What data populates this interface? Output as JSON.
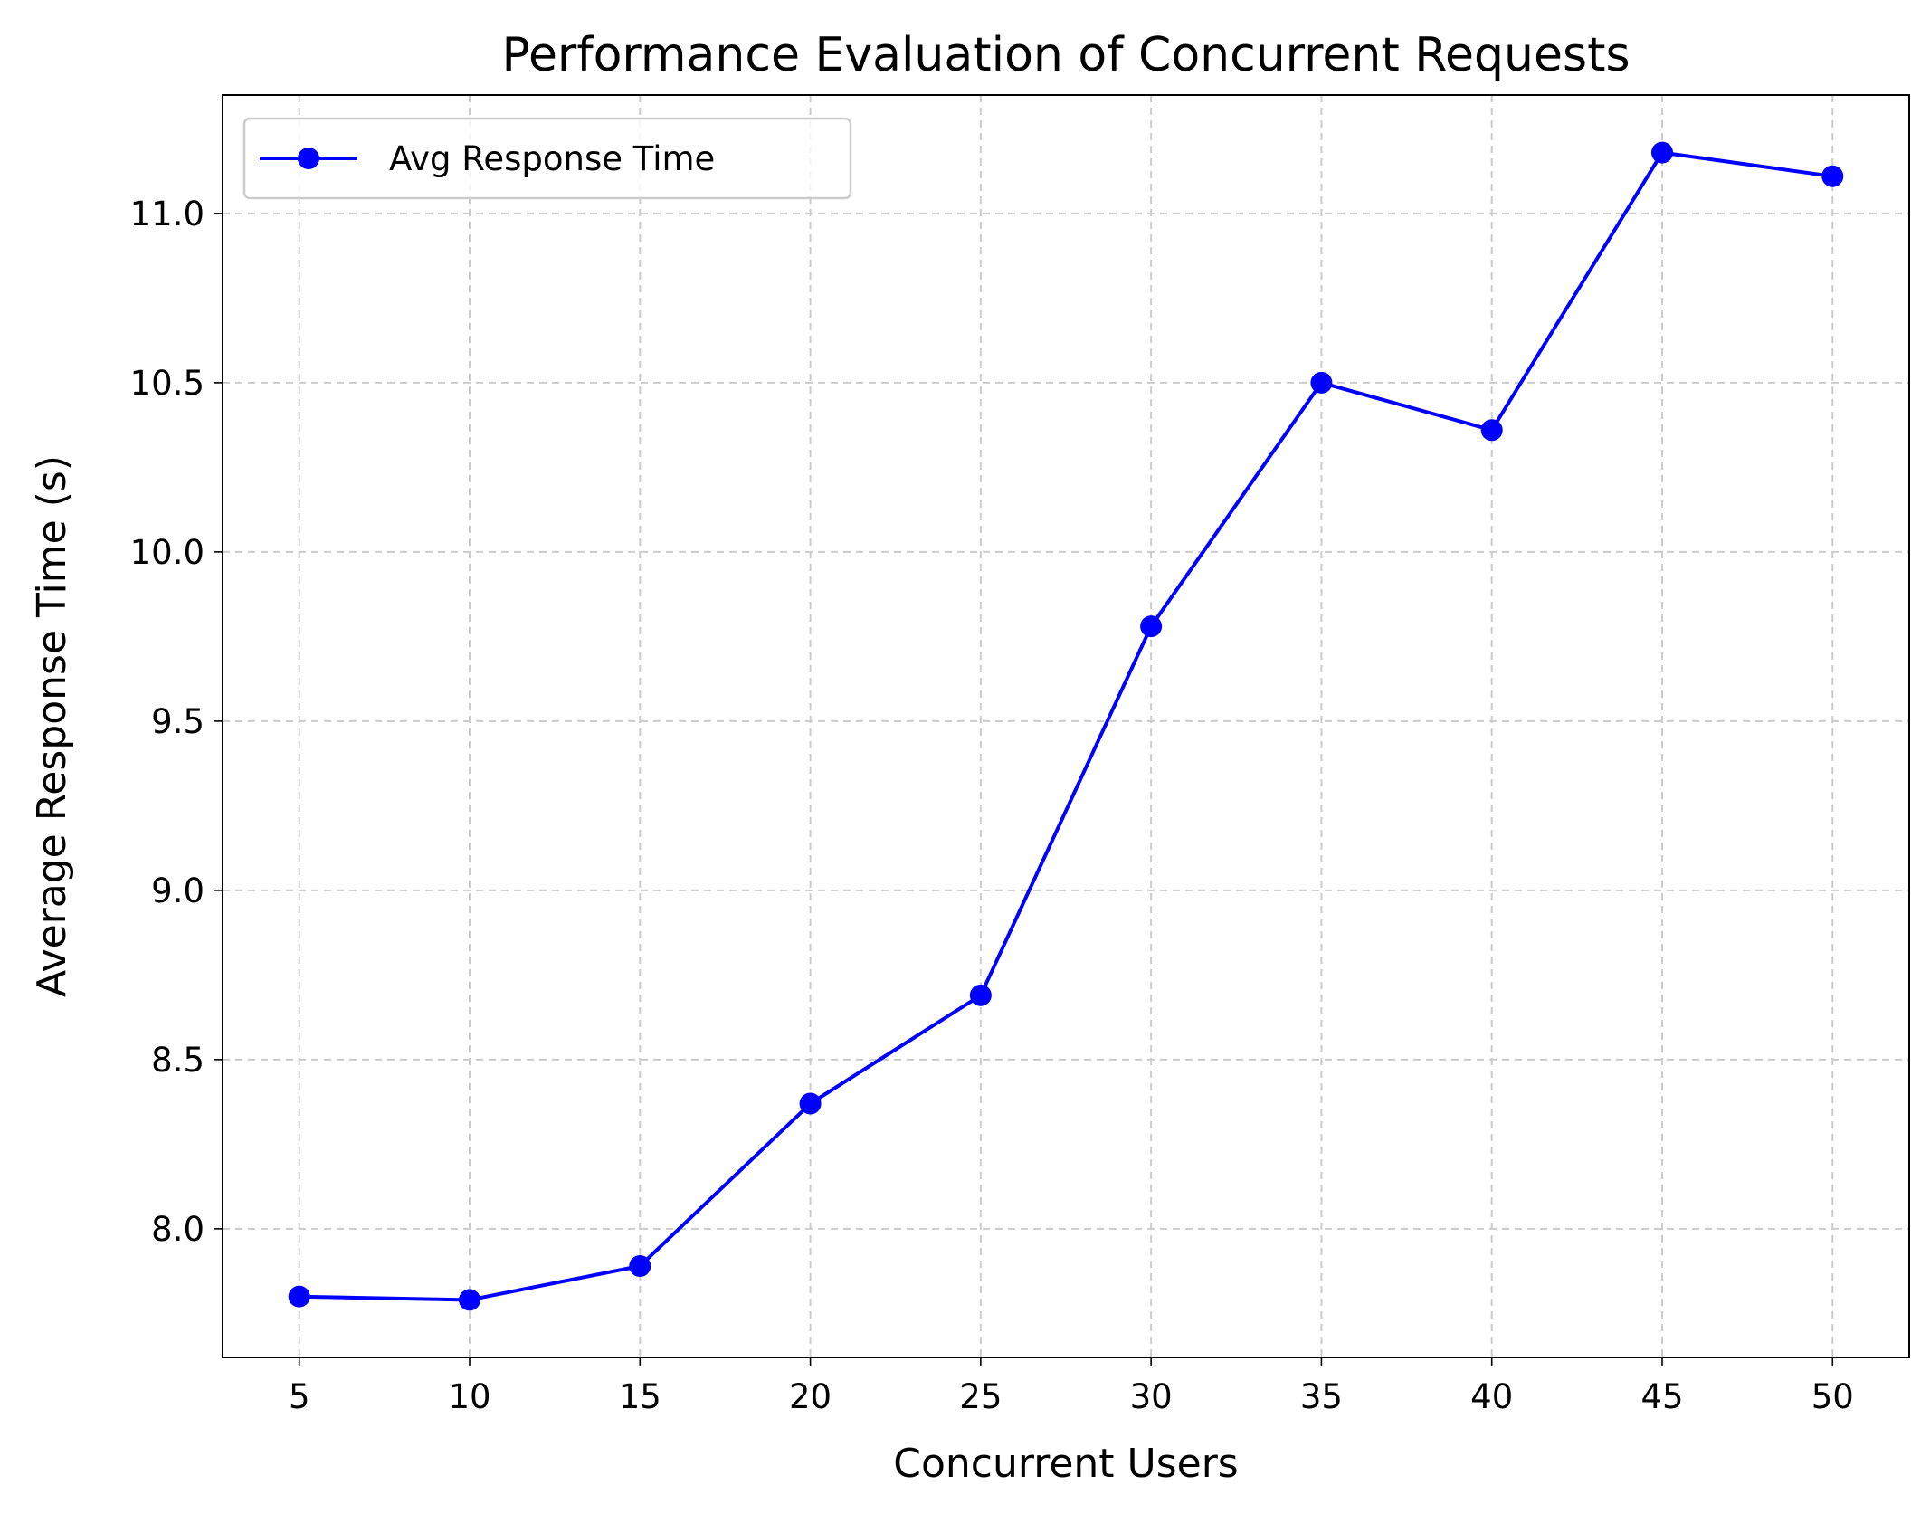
{
  "chart_data": {
    "type": "line",
    "title": "Performance Evaluation of Concurrent Requests",
    "xlabel": "Concurrent Users",
    "ylabel": "Average Response Time (s)",
    "x": [
      5,
      10,
      15,
      20,
      25,
      30,
      35,
      40,
      45,
      50
    ],
    "series": [
      {
        "name": "Avg Response Time",
        "color": "#0000ff",
        "marker": "circle",
        "values": [
          7.8,
          7.79,
          7.89,
          8.37,
          8.69,
          9.78,
          10.5,
          10.36,
          11.18,
          11.11
        ]
      }
    ],
    "xlim": [
      2.75,
      52.25
    ],
    "ylim": [
      7.62,
      11.35
    ],
    "xticks": [
      5,
      10,
      15,
      20,
      25,
      30,
      35,
      40,
      45,
      50
    ],
    "xtick_labels": [
      "5",
      "10",
      "15",
      "20",
      "25",
      "30",
      "35",
      "40",
      "45",
      "50"
    ],
    "yticks": [
      8.0,
      8.5,
      9.0,
      9.5,
      10.0,
      10.5,
      11.0
    ],
    "ytick_labels": [
      "8.0",
      "8.5",
      "9.0",
      "9.5",
      "10.0",
      "10.5",
      "11.0"
    ],
    "grid": true,
    "legend_position": "top-left"
  }
}
